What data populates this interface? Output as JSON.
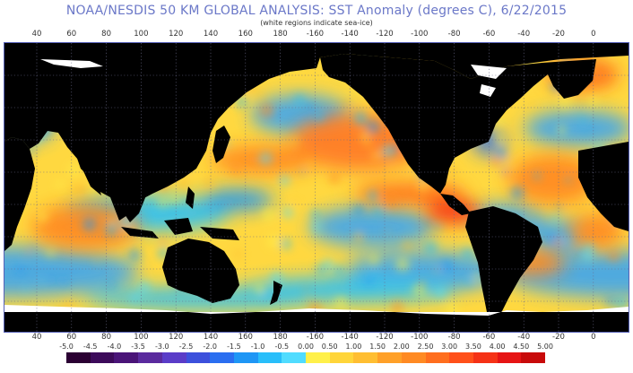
{
  "title": "NOAA/NESDIS 50 KM GLOBAL ANALYSIS: SST Anomaly (degrees C), 6/22/2015",
  "subtitle": "(white regions indicate sea-ice)",
  "longitude_labels": [
    "40",
    "60",
    "80",
    "100",
    "120",
    "140",
    "160",
    "180",
    "-160",
    "-140",
    "-120",
    "-100",
    "-80",
    "-60",
    "-40",
    "-20",
    "0"
  ],
  "colorbar": {
    "tick_labels": [
      "-5.0",
      "-4.5",
      "-4.0",
      "-3.5",
      "-3.0",
      "-2.5",
      "-2.0",
      "-1.5",
      "-1.0",
      "-0.5",
      "0.00",
      "0.50",
      "1.00",
      "1.50",
      "2.00",
      "2.50",
      "3.00",
      "3.50",
      "4.00",
      "4.50",
      "5.00"
    ],
    "colors": [
      "#2b0033",
      "#3c0a5a",
      "#4a1478",
      "#5a2a9e",
      "#5a3cc8",
      "#3c50dc",
      "#2a6ef0",
      "#1e96f5",
      "#28befa",
      "#50dcff",
      "#fff04a",
      "#ffd53a",
      "#ffbe32",
      "#ffa028",
      "#ff8a23",
      "#ff6e1e",
      "#ff501a",
      "#f53216",
      "#e61414",
      "#c80a0a"
    ]
  },
  "map": {
    "land_color": "#000000",
    "sea_ice_color": "#ffffff",
    "grid_color": "#6a6a8a",
    "ocean_base_color": "#ffd840",
    "warm_anomaly_color": "#ff7a28",
    "cool_anomaly_color": "#3ca6f0"
  }
}
